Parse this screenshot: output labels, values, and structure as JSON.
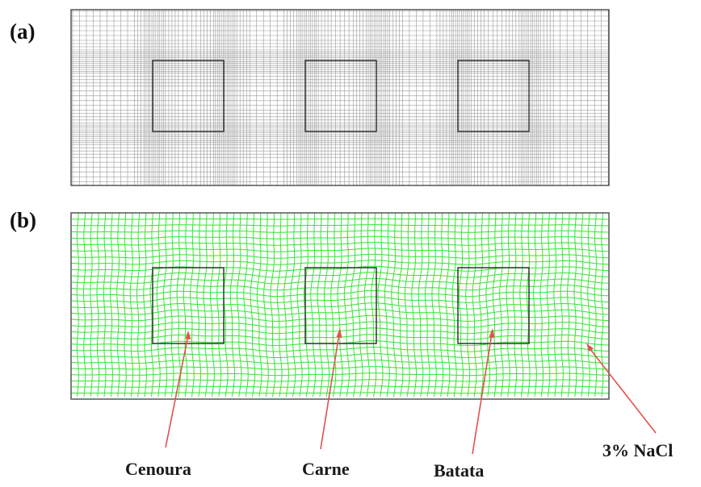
{
  "panels": {
    "a": {
      "label": "(a)"
    },
    "b": {
      "label": "(b)"
    }
  },
  "colors": {
    "mesh_a": "#9a9a9a",
    "mesh_b": "#33e633",
    "outline": "#3a3a3a",
    "arrow": "#e0524e",
    "background": "#ffffff"
  },
  "callouts": [
    {
      "key": "cenoura",
      "text": "Cenoura"
    },
    {
      "key": "carne",
      "text": "Carne"
    },
    {
      "key": "batata",
      "text": "Batata"
    },
    {
      "key": "nacl",
      "text": "3% NaCl"
    }
  ]
}
